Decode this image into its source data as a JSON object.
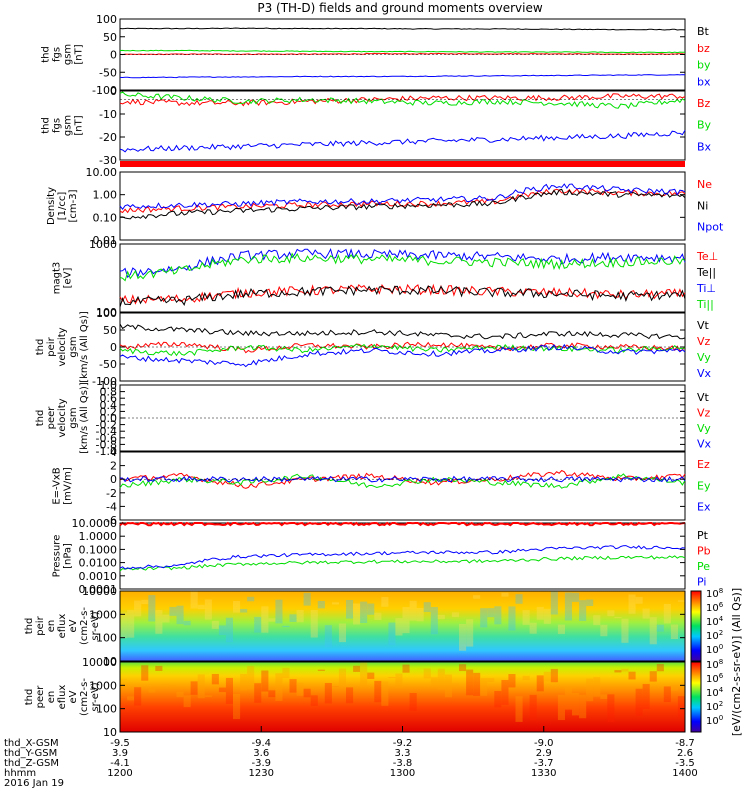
{
  "title": "P3 (TH-D) fields and ground moments overview",
  "date_label": "2016 Jan 19",
  "colors": {
    "black": "#000000",
    "red": "#ff0000",
    "green": "#00dd00",
    "blue": "#0000ff"
  },
  "orbit": {
    "row_labels": [
      "thd_X-GSM",
      "thd_Y-GSM",
      "thd_Z-GSM",
      "hhmm"
    ],
    "columns": [
      {
        "x": "-9.5",
        "y": "3.9",
        "z": "-4.1",
        "t": "1200"
      },
      {
        "x": "-9.4",
        "y": "3.6",
        "z": "-3.9",
        "t": "1230"
      },
      {
        "x": "-9.2",
        "y": "3.3",
        "z": "-3.8",
        "t": "1300"
      },
      {
        "x": "-9.0",
        "y": "2.9",
        "z": "-3.7",
        "t": "1330"
      },
      {
        "x": "-8.7",
        "y": "2.6",
        "z": "-3.5",
        "t": "1400"
      }
    ]
  },
  "colorbar": {
    "label": "[eV/(cm2-s-sr-eV)] (All Qs)]",
    "ticks_top": [
      "10^8",
      "10^6",
      "10^4",
      "10^2",
      "10^0"
    ],
    "ticks_bottom": [
      "10^8",
      "10^6",
      "10^4",
      "10^2",
      "10^0"
    ]
  },
  "chart_data": [
    {
      "type": "line",
      "id": "fgs_gsm",
      "ylabel": [
        "thd",
        "fgs",
        "gsm",
        "[nT]"
      ],
      "ylim": [
        -100,
        100
      ],
      "yticks": [
        "100",
        "50",
        "0",
        "-50",
        "-100"
      ],
      "legend": [
        "Bt",
        "bz",
        "by",
        "bx"
      ],
      "series": [
        {
          "name": "Bt",
          "color": "black",
          "values": [
            73,
            73,
            74,
            73,
            73,
            72,
            72,
            71,
            70,
            70
          ]
        },
        {
          "name": "bz",
          "color": "red",
          "values": [
            0,
            1,
            1,
            1,
            2,
            2,
            2,
            2,
            1,
            1
          ]
        },
        {
          "name": "by",
          "color": "green",
          "values": [
            11,
            11,
            10,
            9,
            8,
            8,
            7,
            7,
            6,
            6
          ]
        },
        {
          "name": "bx",
          "color": "blue",
          "values": [
            -65,
            -64,
            -63,
            -62,
            -62,
            -61,
            -60,
            -59,
            -58,
            -57
          ]
        }
      ]
    },
    {
      "type": "line",
      "id": "fgs_gsm_detail",
      "ylabel": [
        "thd",
        "fgs",
        "gsm",
        "[nT]"
      ],
      "ylim": [
        -35,
        5
      ],
      "yticks": [
        "0",
        "-10",
        "-20",
        "-30"
      ],
      "legend": [
        "Bz",
        "By",
        "Bx"
      ],
      "series": [
        {
          "name": "Bz",
          "color": "red",
          "values": [
            -1,
            -2,
            -2,
            -1,
            0,
            1,
            1,
            1,
            2,
            2
          ]
        },
        {
          "name": "By",
          "color": "green",
          "values": [
            3,
            1,
            -1,
            0,
            -1,
            -2,
            -1,
            -2,
            -4,
            0
          ]
        },
        {
          "name": "Bx",
          "color": "blue",
          "values": [
            -29,
            -28,
            -27,
            -26,
            -25,
            -24,
            -23,
            -22,
            -21,
            -19
          ]
        }
      ]
    },
    {
      "type": "line",
      "id": "density",
      "scale": "log",
      "ylabel": [
        "Density",
        "[1/cc]",
        "[cm-3]"
      ],
      "ylim": [
        0.01,
        10
      ],
      "yticks": [
        "10.00",
        "1.00",
        "0.10",
        "0.01"
      ],
      "legend": [
        "Ne",
        "Ni",
        "Npot"
      ],
      "series": [
        {
          "name": "Ne",
          "color": "red",
          "values": [
            0.2,
            0.25,
            0.3,
            0.35,
            0.4,
            0.4,
            0.5,
            1.5,
            1.2,
            1.1
          ]
        },
        {
          "name": "Ni",
          "color": "black",
          "values": [
            0.1,
            0.15,
            0.2,
            0.25,
            0.3,
            0.35,
            0.4,
            1.3,
            1.0,
            0.9
          ]
        },
        {
          "name": "Npot",
          "color": "blue",
          "values": [
            0.3,
            0.35,
            0.4,
            0.5,
            0.5,
            0.6,
            0.7,
            2.5,
            1.6,
            1.3
          ]
        }
      ]
    },
    {
      "type": "line",
      "id": "temperature",
      "scale": "log",
      "ylabel": [
        "magt3",
        "[eV]"
      ],
      "ylim": [
        50,
        3000
      ],
      "yticks": [
        "1000",
        "100"
      ],
      "legend": [
        "Te⊥",
        "Te||",
        "Ti⊥",
        "Ti||"
      ],
      "series": [
        {
          "name": "Te⊥",
          "color": "red",
          "values": [
            100,
            110,
            160,
            180,
            200,
            190,
            170,
            160,
            140,
            150
          ]
        },
        {
          "name": "Te||",
          "color": "black",
          "values": [
            90,
            100,
            150,
            170,
            190,
            180,
            160,
            150,
            130,
            140
          ]
        },
        {
          "name": "Ti⊥",
          "color": "blue",
          "values": [
            500,
            700,
            1500,
            1700,
            1600,
            1500,
            1400,
            1200,
            1400,
            1300
          ]
        },
        {
          "name": "Ti||",
          "color": "green",
          "values": [
            400,
            600,
            1200,
            1300,
            1200,
            1100,
            1000,
            900,
            1000,
            1100
          ]
        }
      ]
    },
    {
      "type": "line",
      "id": "peir_velocity",
      "ylabel": [
        "thd",
        "peir",
        "velocity",
        "gsm",
        "[km/s (All Qs)]"
      ],
      "ylim": [
        -100,
        100
      ],
      "yticks": [
        "100",
        "50",
        "0",
        "-50",
        "-100"
      ],
      "legend": [
        "Vt",
        "Vz",
        "Vy",
        "Vx"
      ],
      "series": [
        {
          "name": "Vt",
          "color": "black",
          "values": [
            60,
            50,
            40,
            40,
            45,
            35,
            30,
            40,
            35,
            30
          ]
        },
        {
          "name": "Vz",
          "color": "red",
          "values": [
            0,
            10,
            -10,
            5,
            0,
            10,
            -5,
            5,
            0,
            -5
          ]
        },
        {
          "name": "Vy",
          "color": "green",
          "values": [
            -10,
            -20,
            0,
            -10,
            5,
            -10,
            0,
            -5,
            -10,
            0
          ]
        },
        {
          "name": "Vx",
          "color": "blue",
          "values": [
            -30,
            -40,
            -50,
            -20,
            -10,
            -20,
            -10,
            0,
            -15,
            -10
          ]
        }
      ]
    },
    {
      "type": "line",
      "id": "peer_velocity",
      "ylabel": [
        "thd",
        "peer",
        "velocity",
        "gsm",
        "[km/s (All Qs)]"
      ],
      "ylim": [
        -1,
        1
      ],
      "yticks": [
        "1.0",
        "0.8",
        "0.6",
        "0.4",
        "0.2",
        "0.0",
        "-0.2",
        "-0.4",
        "-0.6",
        "-0.8",
        "-1.0"
      ],
      "legend": [
        "Vt",
        "Vz",
        "Vy",
        "Vx"
      ],
      "series": []
    },
    {
      "type": "line",
      "id": "efield",
      "ylabel": [
        "E=-VxB",
        "[mV/m]"
      ],
      "ylim": [
        -6,
        4
      ],
      "yticks": [
        "4",
        "2",
        "0",
        "-2",
        "-4",
        "-6"
      ],
      "legend": [
        "Ez",
        "Ey",
        "Ex"
      ],
      "series": [
        {
          "name": "Ez",
          "color": "red",
          "values": [
            0,
            0.5,
            -1,
            0,
            0.5,
            -0.5,
            0,
            1,
            0,
            0.5
          ]
        },
        {
          "name": "Ey",
          "color": "green",
          "values": [
            -1,
            0,
            -0.5,
            0.5,
            -1,
            0,
            -0.5,
            -1,
            0.5,
            -0.5
          ]
        },
        {
          "name": "Ex",
          "color": "blue",
          "values": [
            0,
            0,
            0,
            0,
            0,
            0,
            0,
            0,
            0,
            0
          ]
        }
      ]
    },
    {
      "type": "line",
      "id": "pressure",
      "scale": "log",
      "ylabel": [
        "Pressure",
        "[nPa]"
      ],
      "ylim": [
        0.0001,
        10
      ],
      "yticks": [
        "10.0000",
        "1.0000",
        "0.1000",
        "0.0100",
        "0.0010",
        "0.0001"
      ],
      "legend": [
        "Pt",
        "Pb",
        "Pe",
        "Pi"
      ],
      "series": [
        {
          "name": "Pb",
          "color": "red",
          "values": [
            9,
            9,
            9,
            9,
            9,
            9,
            9,
            9,
            9,
            9
          ]
        },
        {
          "name": "Pe",
          "color": "green",
          "values": [
            0.003,
            0.004,
            0.008,
            0.01,
            0.012,
            0.012,
            0.013,
            0.02,
            0.025,
            0.025
          ]
        },
        {
          "name": "Pi",
          "color": "blue",
          "values": [
            0.004,
            0.006,
            0.03,
            0.04,
            0.05,
            0.06,
            0.06,
            0.12,
            0.15,
            0.14
          ]
        }
      ]
    },
    {
      "type": "heatmap",
      "id": "peir_flux",
      "ylabel": [
        "thd",
        "peir",
        "en",
        "eflux",
        "eV",
        "(cm2-s-",
        "sr-eV)"
      ],
      "ylim": [
        5,
        25000
      ],
      "yticks": [
        "10000",
        "1000",
        "100",
        "10"
      ]
    },
    {
      "type": "heatmap",
      "id": "peer_flux",
      "ylabel": [
        "thd",
        "peer",
        "en",
        "eflux",
        "eV",
        "(cm2-s-",
        "sr-eV)"
      ],
      "ylim": [
        5,
        25000
      ],
      "yticks": [
        "10000",
        "1000",
        "100",
        "10"
      ]
    }
  ]
}
